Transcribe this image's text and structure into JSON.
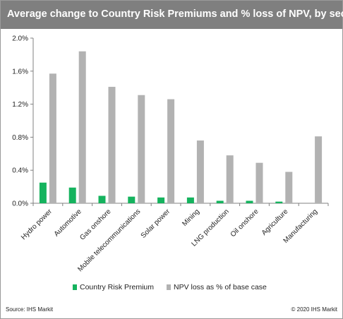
{
  "header": {
    "title": "Average change to Country Risk Premiums and % loss of NPV, by sector"
  },
  "footer": {
    "source": "Source:  IHS Markit",
    "copyright": "© 2020  IHS Markit"
  },
  "colors": {
    "title_bar": "#7f7f7f",
    "crp": "#15b35e",
    "npv": "#b2b2b2",
    "axis": "#808080",
    "grid": "#d4d4d4"
  },
  "chart_data": {
    "type": "bar",
    "title": "Average change to Country Risk Premiums and % loss of NPV, by sector",
    "categories": [
      "Hydro power",
      "Automotive",
      "Gas onshore",
      "Mobile telecommunications",
      "Solar power",
      "Mining",
      "LNG production",
      "Oil onshore",
      "Agriculture",
      "Manufacturing"
    ],
    "series": [
      {
        "name": "Country Risk Premium",
        "values": [
          0.25,
          0.19,
          0.09,
          0.08,
          0.07,
          0.07,
          0.03,
          0.03,
          0.02,
          0.0
        ]
      },
      {
        "name": "NPV loss as % of base case",
        "values": [
          1.57,
          1.84,
          1.41,
          1.31,
          1.26,
          0.76,
          0.58,
          0.49,
          0.38,
          0.81
        ]
      }
    ],
    "yticks": [
      "0.0%",
      "0.4%",
      "0.8%",
      "1.2%",
      "1.6%",
      "2.0%"
    ],
    "ylim": [
      0,
      2.0
    ],
    "grid": false,
    "legend_position": "bottom"
  }
}
